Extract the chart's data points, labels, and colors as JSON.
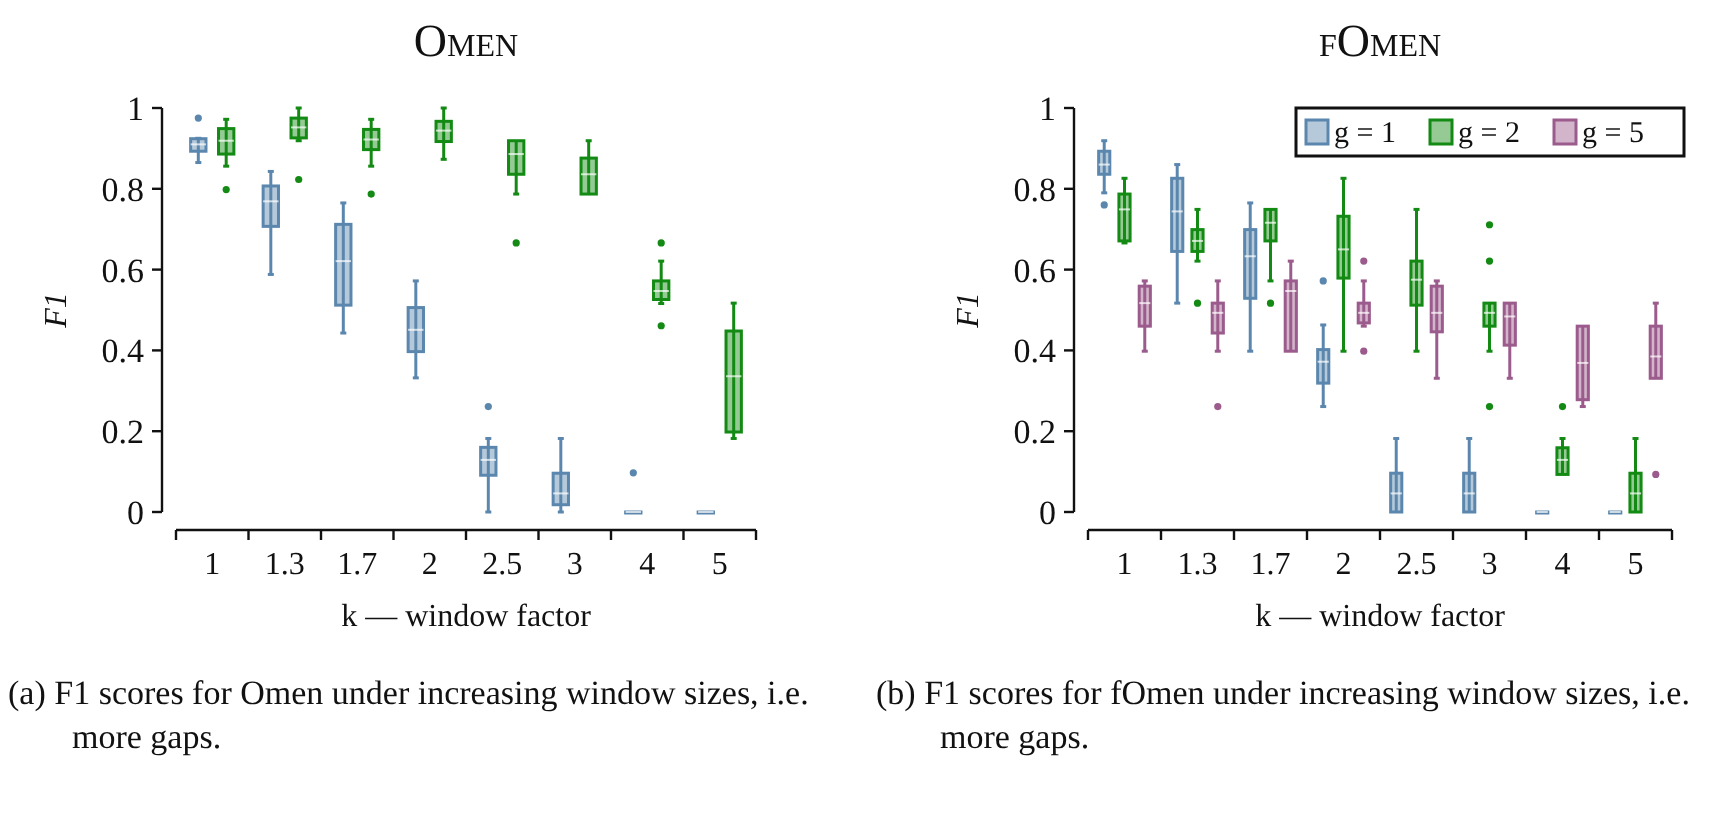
{
  "chart_data": [
    {
      "type": "box",
      "title": "Omen",
      "xlabel": "k — window factor",
      "ylabel": "F1",
      "categories": [
        "1",
        "1.3",
        "1.7",
        "2",
        "2.5",
        "3",
        "4",
        "5"
      ],
      "ylim": [
        0,
        1
      ],
      "yticks": [
        0,
        0.2,
        0.4,
        0.6,
        0.8,
        1
      ],
      "annotations": [
        "(a) F1 scores for Omen under increasing window sizes, i.e. more gaps."
      ],
      "series": [
        {
          "color": "#5b87ae",
          "boxes": [
            {
              "low": 0.865,
              "q1": 0.893,
              "median": 0.91,
              "q3": 0.924,
              "high": 0.925,
              "outliers": [
                0.975
              ]
            },
            {
              "low": 0.588,
              "q1": 0.707,
              "median": 0.769,
              "q3": 0.807,
              "high": 0.843
            },
            {
              "low": 0.443,
              "q1": 0.512,
              "median": 0.621,
              "q3": 0.712,
              "high": 0.765
            },
            {
              "low": 0.332,
              "q1": 0.397,
              "median": 0.451,
              "q3": 0.506,
              "high": 0.572
            },
            {
              "low": 0,
              "q1": 0.091,
              "median": 0.129,
              "q3": 0.16,
              "high": 0.182,
              "outliers": [
                0.261
              ]
            },
            {
              "low": 0,
              "q1": 0.018,
              "median": 0.046,
              "q3": 0.096,
              "high": 0.182
            },
            {
              "low": 0,
              "q1": 0,
              "median": 0,
              "q3": 0,
              "high": 0,
              "outliers": [
                0.097
              ]
            },
            {
              "low": 0,
              "q1": 0,
              "median": 0,
              "q3": 0,
              "high": 0
            }
          ]
        },
        {
          "color": "#138a13",
          "boxes": [
            {
              "low": 0.856,
              "q1": 0.886,
              "median": 0.919,
              "q3": 0.949,
              "high": 0.972,
              "outliers": [
                0.798
              ]
            },
            {
              "low": 0.919,
              "q1": 0.926,
              "median": 0.952,
              "q3": 0.975,
              "high": 1,
              "outliers": [
                0.823
              ]
            },
            {
              "low": 0.856,
              "q1": 0.897,
              "median": 0.922,
              "q3": 0.947,
              "high": 0.972,
              "outliers": [
                0.787
              ]
            },
            {
              "low": 0.873,
              "q1": 0.917,
              "median": 0.944,
              "q3": 0.967,
              "high": 1
            },
            {
              "low": 0.787,
              "q1": 0.836,
              "median": 0.886,
              "q3": 0.919,
              "high": 0.919,
              "outliers": [
                0.666
              ]
            },
            {
              "low": 0.787,
              "q1": 0.787,
              "median": 0.836,
              "q3": 0.876,
              "high": 0.919
            },
            {
              "low": 0.516,
              "q1": 0.526,
              "median": 0.547,
              "q3": 0.572,
              "high": 0.621,
              "outliers": [
                0.666,
                0.461
              ]
            },
            {
              "low": 0.182,
              "q1": 0.198,
              "median": 0.336,
              "q3": 0.448,
              "high": 0.517
            }
          ]
        }
      ]
    },
    {
      "type": "box",
      "title": "fOmen",
      "xlabel": "k — window factor",
      "ylabel": "F1",
      "categories": [
        "1",
        "1.3",
        "1.7",
        "2",
        "2.5",
        "3",
        "4",
        "5"
      ],
      "ylim": [
        0,
        1
      ],
      "yticks": [
        0,
        0.2,
        0.4,
        0.6,
        0.8,
        1
      ],
      "legend": "top right",
      "annotations": [
        "(b) F1 scores for fOmen under increasing window sizes, i.e. more gaps."
      ],
      "series": [
        {
          "name": "g = 1",
          "color": "#5b87ae",
          "boxes": [
            {
              "low": 0.79,
              "q1": 0.836,
              "median": 0.86,
              "q3": 0.893,
              "high": 0.919,
              "outliers": [
                0.76
              ]
            },
            {
              "low": 0.517,
              "q1": 0.645,
              "median": 0.744,
              "q3": 0.826,
              "high": 0.86
            },
            {
              "low": 0.398,
              "q1": 0.529,
              "median": 0.633,
              "q3": 0.699,
              "high": 0.765
            },
            {
              "low": 0.261,
              "q1": 0.319,
              "median": 0.372,
              "q3": 0.402,
              "high": 0.463,
              "outliers": [
                0.572
              ]
            },
            {
              "low": 0,
              "q1": 0,
              "median": 0.046,
              "q3": 0.096,
              "high": 0.182
            },
            {
              "low": 0,
              "q1": 0,
              "median": 0.046,
              "q3": 0.096,
              "high": 0.182
            },
            {
              "low": 0,
              "q1": 0,
              "median": 0,
              "q3": 0,
              "high": 0
            },
            {
              "low": 0,
              "q1": 0,
              "median": 0,
              "q3": 0,
              "high": 0
            }
          ]
        },
        {
          "name": "g = 2",
          "color": "#138a13",
          "boxes": [
            {
              "low": 0.666,
              "q1": 0.671,
              "median": 0.749,
              "q3": 0.787,
              "high": 0.826
            },
            {
              "low": 0.621,
              "q1": 0.645,
              "median": 0.671,
              "q3": 0.699,
              "high": 0.749,
              "outliers": [
                0.517
              ]
            },
            {
              "low": 0.572,
              "q1": 0.671,
              "median": 0.716,
              "q3": 0.749,
              "high": 0.749,
              "outliers": [
                0.517
              ]
            },
            {
              "low": 0.398,
              "q1": 0.579,
              "median": 0.65,
              "q3": 0.732,
              "high": 0.826
            },
            {
              "low": 0.398,
              "q1": 0.512,
              "median": 0.575,
              "q3": 0.621,
              "high": 0.749
            },
            {
              "low": 0.398,
              "q1": 0.46,
              "median": 0.493,
              "q3": 0.517,
              "high": 0.517,
              "outliers": [
                0.711,
                0.621,
                0.261
              ]
            },
            {
              "low": 0.093,
              "q1": 0.093,
              "median": 0.129,
              "q3": 0.159,
              "high": 0.182,
              "outliers": [
                0.261
              ]
            },
            {
              "low": 0,
              "q1": 0,
              "median": 0.046,
              "q3": 0.096,
              "high": 0.182
            }
          ]
        },
        {
          "name": "g = 5",
          "color": "#9b5b8c",
          "boxes": [
            {
              "low": 0.398,
              "q1": 0.46,
              "median": 0.517,
              "q3": 0.559,
              "high": 0.572
            },
            {
              "low": 0.398,
              "q1": 0.443,
              "median": 0.493,
              "q3": 0.517,
              "high": 0.572,
              "outliers": [
                0.261
              ]
            },
            {
              "low": 0.398,
              "q1": 0.398,
              "median": 0.547,
              "q3": 0.572,
              "high": 0.621
            },
            {
              "low": 0.46,
              "q1": 0.468,
              "median": 0.493,
              "q3": 0.517,
              "high": 0.572,
              "outliers": [
                0.621,
                0.398
              ]
            },
            {
              "low": 0.331,
              "q1": 0.446,
              "median": 0.493,
              "q3": 0.559,
              "high": 0.572
            },
            {
              "low": 0.331,
              "q1": 0.413,
              "median": 0.484,
              "q3": 0.517,
              "high": 0.517
            },
            {
              "low": 0.261,
              "q1": 0.278,
              "median": 0.369,
              "q3": 0.46,
              "high": 0.46
            },
            {
              "low": 0.331,
              "q1": 0.331,
              "median": 0.385,
              "q3": 0.46,
              "high": 0.517,
              "outliers": [
                0.093
              ]
            }
          ]
        }
      ]
    }
  ]
}
